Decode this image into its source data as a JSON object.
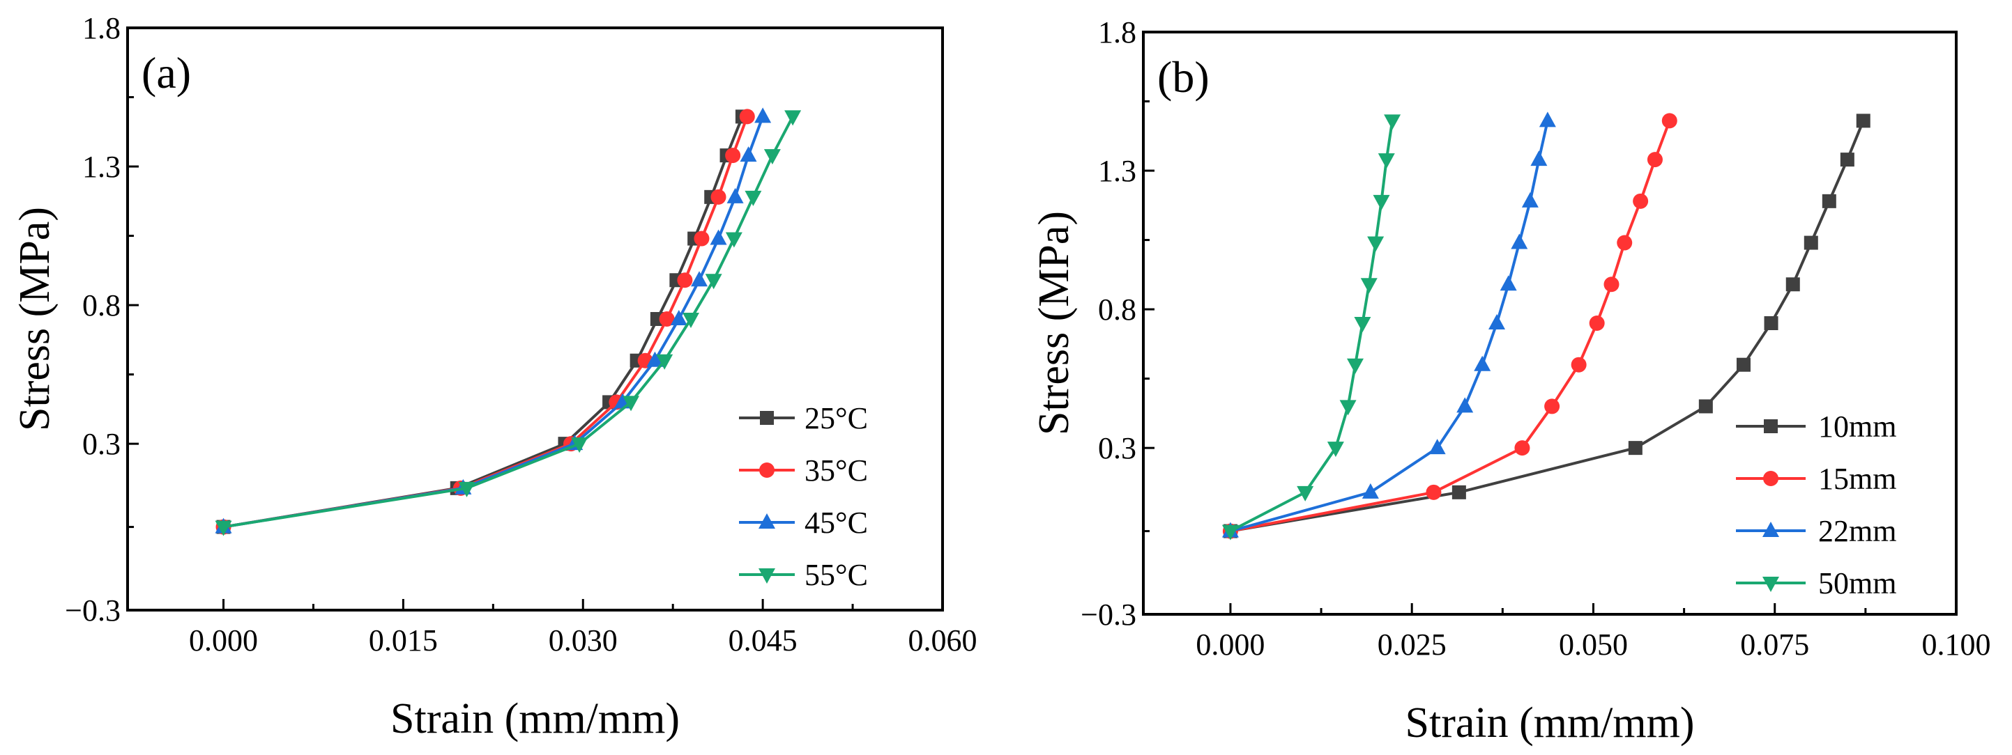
{
  "figure": {
    "background": "#ffffff"
  },
  "chart_data": [
    {
      "type": "line",
      "panel_label": "(a)",
      "xlabel": "Strain  (mm/mm)",
      "ylabel": "Stress  (MPa)",
      "xlim": [
        -0.008,
        0.06
      ],
      "ylim": [
        -0.3,
        1.8
      ],
      "xticks": [
        0.0,
        0.015,
        0.03,
        0.045,
        0.06
      ],
      "xtick_labels": [
        "0.000",
        "0.015",
        "0.030",
        "0.045",
        "0.060"
      ],
      "yticks": [
        -0.3,
        0.3,
        0.8,
        1.3,
        1.8
      ],
      "ytick_labels": [
        "−0.3",
        "0.3",
        "0.8",
        "1.3",
        "1.8"
      ],
      "grid": false,
      "legend_position": "bottom-right",
      "series": [
        {
          "name": "25°C",
          "color": "#404040",
          "marker": "square",
          "x": [
            0.0,
            0.0195,
            0.0285,
            0.0322,
            0.0345,
            0.0362,
            0.0378,
            0.0393,
            0.0407,
            0.042,
            0.0433
          ],
          "y": [
            0.0,
            0.14,
            0.3,
            0.45,
            0.6,
            0.75,
            0.89,
            1.04,
            1.19,
            1.34,
            1.48
          ]
        },
        {
          "name": "35°C",
          "color": "#ff3333",
          "marker": "circle",
          "x": [
            0.0,
            0.0198,
            0.029,
            0.0328,
            0.0352,
            0.037,
            0.0385,
            0.0399,
            0.0413,
            0.0425,
            0.0437
          ],
          "y": [
            0.0,
            0.14,
            0.3,
            0.45,
            0.6,
            0.75,
            0.89,
            1.04,
            1.19,
            1.34,
            1.48
          ]
        },
        {
          "name": "45°C",
          "color": "#1e6fd9",
          "marker": "triangle-up",
          "x": [
            0.0,
            0.02,
            0.0293,
            0.0333,
            0.036,
            0.038,
            0.0397,
            0.0413,
            0.0427,
            0.0438,
            0.045
          ],
          "y": [
            0.0,
            0.14,
            0.3,
            0.45,
            0.6,
            0.75,
            0.89,
            1.04,
            1.19,
            1.34,
            1.48
          ]
        },
        {
          "name": "55°C",
          "color": "#1aa871",
          "marker": "triangle-down",
          "x": [
            0.0,
            0.0203,
            0.0297,
            0.034,
            0.0368,
            0.039,
            0.0409,
            0.0426,
            0.0442,
            0.0458,
            0.0475
          ],
          "y": [
            0.0,
            0.14,
            0.3,
            0.45,
            0.6,
            0.75,
            0.89,
            1.04,
            1.19,
            1.34,
            1.48
          ]
        }
      ]
    },
    {
      "type": "line",
      "panel_label": "(b)",
      "xlabel": "Strain  (mm/mm)",
      "ylabel": "Stress  (MPa)",
      "xlim": [
        -0.012,
        0.1
      ],
      "ylim": [
        -0.3,
        1.8
      ],
      "xticks": [
        0.0,
        0.025,
        0.05,
        0.075,
        0.1
      ],
      "xtick_labels": [
        "0.000",
        "0.025",
        "0.050",
        "0.075",
        "0.100"
      ],
      "yticks": [
        -0.3,
        0.3,
        0.8,
        1.3,
        1.8
      ],
      "ytick_labels": [
        "−0.3",
        "0.3",
        "0.8",
        "1.3",
        "1.8"
      ],
      "grid": false,
      "legend_position": "bottom-right",
      "series": [
        {
          "name": "10mm",
          "color": "#404040",
          "marker": "square",
          "x": [
            0.0,
            0.0315,
            0.0558,
            0.0655,
            0.0707,
            0.0745,
            0.0775,
            0.08,
            0.0825,
            0.085,
            0.0872
          ],
          "y": [
            0.0,
            0.14,
            0.3,
            0.45,
            0.6,
            0.75,
            0.89,
            1.04,
            1.19,
            1.34,
            1.48
          ]
        },
        {
          "name": "15mm",
          "color": "#ff3333",
          "marker": "circle",
          "x": [
            0.0,
            0.028,
            0.0402,
            0.0443,
            0.048,
            0.0505,
            0.0525,
            0.0543,
            0.0565,
            0.0585,
            0.0605
          ],
          "y": [
            0.0,
            0.14,
            0.3,
            0.45,
            0.6,
            0.75,
            0.89,
            1.04,
            1.19,
            1.34,
            1.48
          ]
        },
        {
          "name": "22mm",
          "color": "#1e6fd9",
          "marker": "triangle-up",
          "x": [
            0.0,
            0.0193,
            0.0285,
            0.0323,
            0.0347,
            0.0367,
            0.0383,
            0.0398,
            0.0413,
            0.0425,
            0.0437
          ],
          "y": [
            0.0,
            0.14,
            0.3,
            0.45,
            0.6,
            0.75,
            0.89,
            1.04,
            1.19,
            1.34,
            1.48
          ]
        },
        {
          "name": "50mm",
          "color": "#1aa871",
          "marker": "triangle-down",
          "x": [
            0.0,
            0.0103,
            0.0145,
            0.0162,
            0.0172,
            0.0182,
            0.0191,
            0.02,
            0.0208,
            0.0215,
            0.0223
          ],
          "y": [
            0.0,
            0.14,
            0.3,
            0.45,
            0.6,
            0.75,
            0.89,
            1.04,
            1.19,
            1.34,
            1.48
          ]
        }
      ]
    }
  ]
}
